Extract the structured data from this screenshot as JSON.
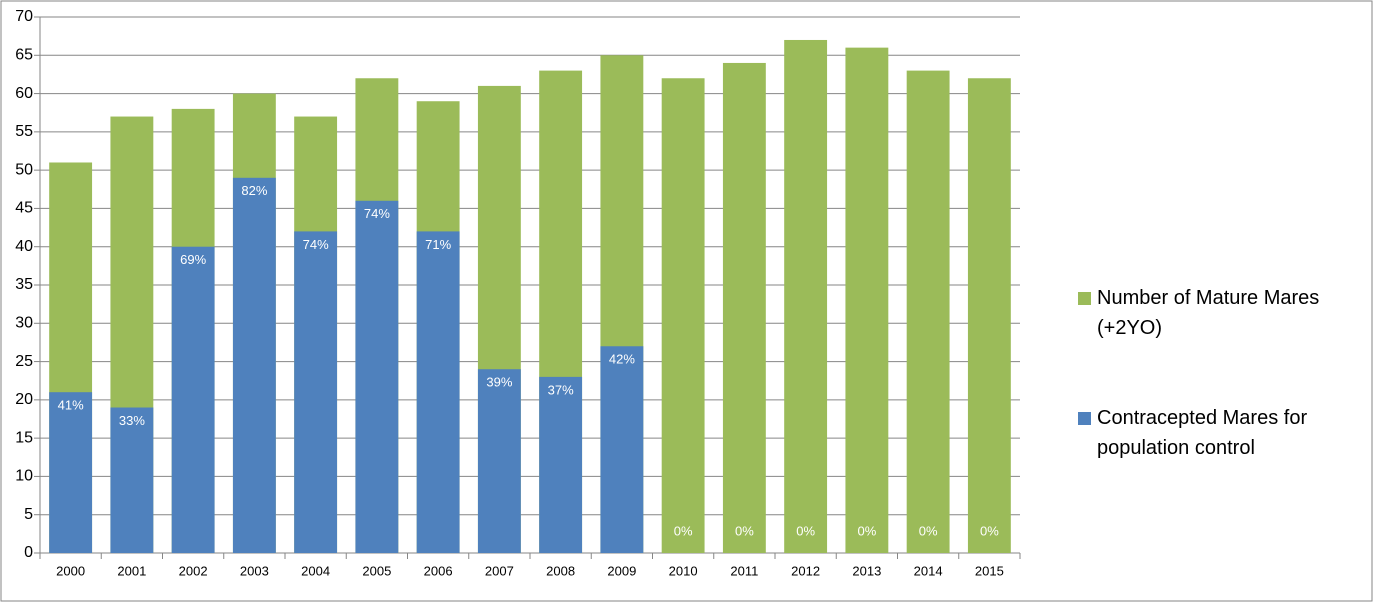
{
  "chart_data": {
    "type": "bar",
    "barmode": "overlay",
    "categories": [
      "2000",
      "2001",
      "2002",
      "2003",
      "2004",
      "2005",
      "2006",
      "2007",
      "2008",
      "2009",
      "2010",
      "2011",
      "2012",
      "2013",
      "2014",
      "2015"
    ],
    "series": [
      {
        "name": "Number of Mature Mares (+2YO)",
        "color": "#9bbb59",
        "values": [
          51,
          57,
          58,
          60,
          57,
          62,
          59,
          61,
          63,
          65,
          62,
          64,
          67,
          66,
          63,
          62
        ]
      },
      {
        "name": "Contracepted Mares for population control",
        "color": "#4f81bd",
        "values": [
          21,
          19,
          40,
          49,
          42,
          46,
          42,
          24,
          23,
          27,
          0,
          0,
          0,
          0,
          0,
          0
        ],
        "data_labels": [
          "41%",
          "33%",
          "69%",
          "82%",
          "74%",
          "74%",
          "71%",
          "39%",
          "37%",
          "42%",
          "0%",
          "0%",
          "0%",
          "0%",
          "0%",
          "0%"
        ]
      }
    ],
    "ylim": [
      0,
      70
    ],
    "yticks": [
      0,
      5,
      10,
      15,
      20,
      25,
      30,
      35,
      40,
      45,
      50,
      55,
      60,
      65,
      70
    ],
    "grid": true,
    "legend": "right"
  }
}
